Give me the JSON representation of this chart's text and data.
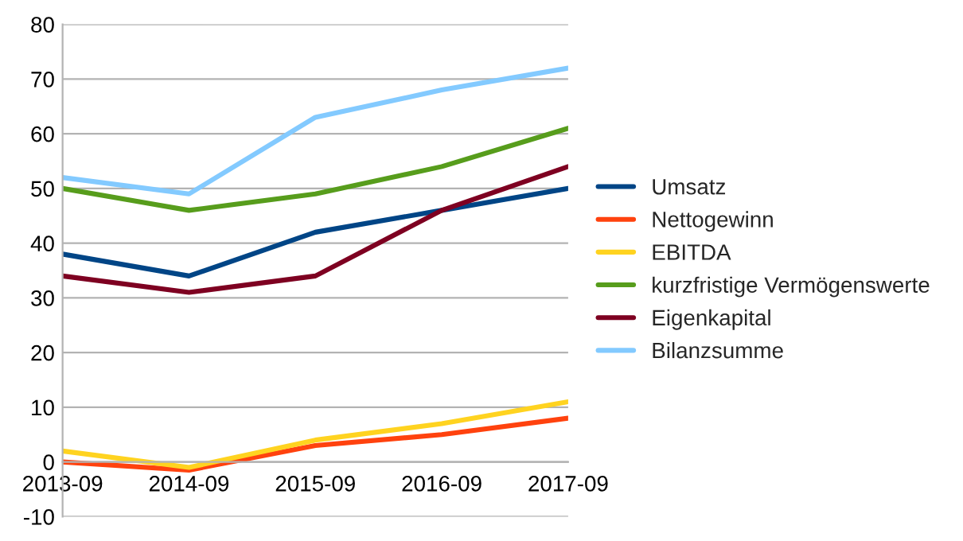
{
  "chart_data": {
    "type": "line",
    "categories": [
      "2013-09",
      "2014-09",
      "2015-09",
      "2016-09",
      "2017-09"
    ],
    "series": [
      {
        "name": "Umsatz",
        "color": "#004586",
        "values": [
          38,
          34,
          42,
          46,
          50
        ]
      },
      {
        "name": "Nettogewinn",
        "color": "#ff420e",
        "values": [
          0,
          -1.5,
          3,
          5,
          8
        ]
      },
      {
        "name": "EBITDA",
        "color": "#ffd320",
        "values": [
          2,
          -1,
          4,
          7,
          11
        ]
      },
      {
        "name": "kurzfristige Vermögenswerte",
        "color": "#579d1c",
        "values": [
          50,
          46,
          49,
          54,
          61
        ]
      },
      {
        "name": "Eigenkapital",
        "color": "#7e0021",
        "values": [
          34,
          31,
          34,
          46,
          54
        ]
      },
      {
        "name": "Bilanzsumme",
        "color": "#83caff",
        "values": [
          52,
          49,
          63,
          68,
          72
        ]
      }
    ],
    "ylim": [
      -10,
      80
    ],
    "yticks": [
      -10,
      0,
      10,
      20,
      30,
      40,
      50,
      60,
      70,
      80
    ],
    "grid": "y",
    "legend": "right",
    "marker": "none",
    "line_style": "solid"
  }
}
